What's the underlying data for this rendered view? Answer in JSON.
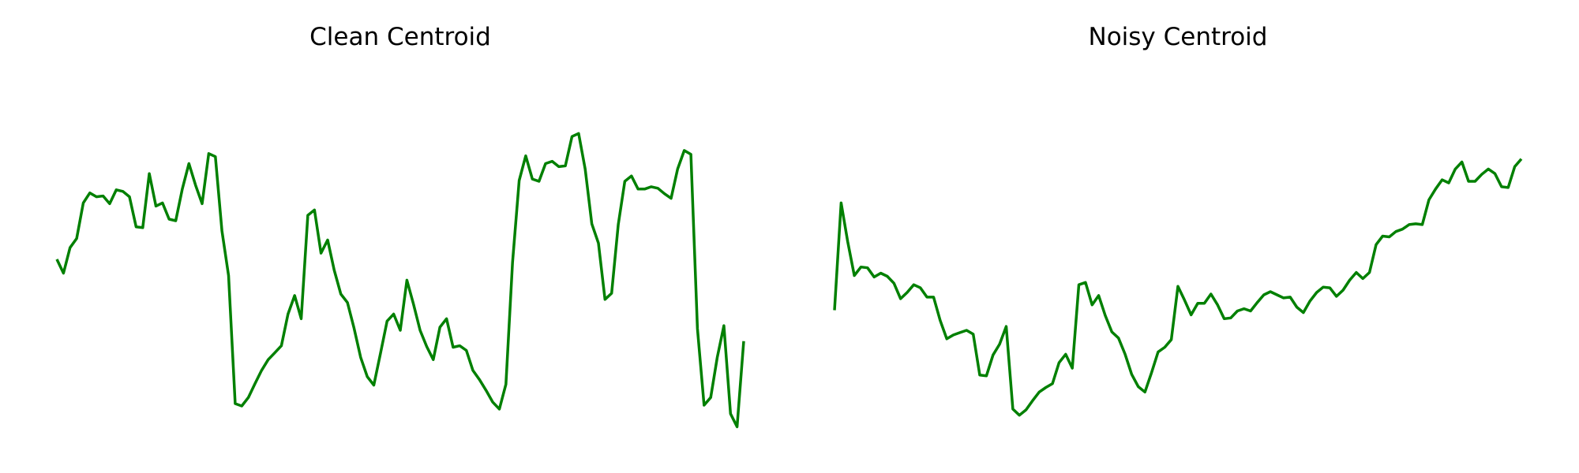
{
  "chart_data": [
    {
      "type": "line",
      "title": "Clean Centroid",
      "xlabel": "",
      "ylabel": "",
      "grid": false,
      "axes_visible": false,
      "color": "#008000",
      "y_range": [
        -2.65,
        2.15
      ],
      "series": [
        {
          "values": [
            -0.29,
            -0.47,
            -0.14,
            -0.02,
            0.44,
            0.57,
            0.52,
            0.53,
            0.43,
            0.61,
            0.59,
            0.52,
            0.13,
            0.12,
            0.82,
            0.4,
            0.44,
            0.23,
            0.21,
            0.62,
            0.95,
            0.67,
            0.43,
            1.08,
            1.04,
            0.08,
            -0.5,
            -2.16,
            -2.19,
            -2.08,
            -1.9,
            -1.73,
            -1.59,
            -1.5,
            -1.41,
            -1.0,
            -0.76,
            -1.06,
            0.28,
            0.35,
            -0.21,
            -0.04,
            -0.43,
            -0.74,
            -0.85,
            -1.18,
            -1.56,
            -1.81,
            -1.92,
            -1.51,
            -1.09,
            -1.0,
            -1.21,
            -0.56,
            -0.87,
            -1.21,
            -1.42,
            -1.59,
            -1.17,
            -1.06,
            -1.43,
            -1.41,
            -1.47,
            -1.73,
            -1.85,
            -1.99,
            -2.14,
            -2.23,
            -1.91,
            -0.33,
            0.73,
            1.05,
            0.75,
            0.72,
            0.95,
            0.98,
            0.91,
            0.92,
            1.3,
            1.34,
            0.88,
            0.17,
            -0.08,
            -0.81,
            -0.73,
            0.16,
            0.72,
            0.79,
            0.62,
            0.62,
            0.65,
            0.63,
            0.56,
            0.5,
            0.88,
            1.12,
            1.07,
            -1.19,
            -2.18,
            -2.08,
            -1.56,
            -1.15,
            -2.29,
            -2.46,
            -1.35
          ]
        }
      ]
    },
    {
      "type": "line",
      "title": "Noisy Centroid",
      "xlabel": "",
      "ylabel": "",
      "grid": false,
      "axes_visible": false,
      "color": "#008000",
      "y_range": [
        -2.65,
        2.15
      ],
      "series": [
        {
          "values": [
            -0.95,
            0.44,
            -0.06,
            -0.5,
            -0.39,
            -0.4,
            -0.52,
            -0.47,
            -0.51,
            -0.6,
            -0.8,
            -0.72,
            -0.62,
            -0.66,
            -0.78,
            -0.78,
            -1.08,
            -1.32,
            -1.27,
            -1.24,
            -1.21,
            -1.26,
            -1.79,
            -1.8,
            -1.53,
            -1.39,
            -1.16,
            -2.23,
            -2.31,
            -2.24,
            -2.12,
            -2.01,
            -1.95,
            -1.9,
            -1.63,
            -1.52,
            -1.7,
            -0.62,
            -0.59,
            -0.88,
            -0.76,
            -1.02,
            -1.23,
            -1.31,
            -1.52,
            -1.78,
            -1.94,
            -2.01,
            -1.76,
            -1.49,
            -1.43,
            -1.33,
            -0.64,
            -0.82,
            -1.01,
            -0.86,
            -0.86,
            -0.74,
            -0.88,
            -1.06,
            -1.05,
            -0.96,
            -0.93,
            -0.96,
            -0.85,
            -0.75,
            -0.71,
            -0.75,
            -0.79,
            -0.78,
            -0.91,
            -0.98,
            -0.83,
            -0.72,
            -0.65,
            -0.66,
            -0.77,
            -0.69,
            -0.56,
            -0.46,
            -0.54,
            -0.46,
            -0.1,
            0.01,
            0.0,
            0.07,
            0.1,
            0.16,
            0.17,
            0.16,
            0.48,
            0.62,
            0.74,
            0.7,
            0.88,
            0.97,
            0.72,
            0.72,
            0.81,
            0.88,
            0.82,
            0.65,
            0.64,
            0.91,
            1.01
          ]
        }
      ]
    }
  ]
}
